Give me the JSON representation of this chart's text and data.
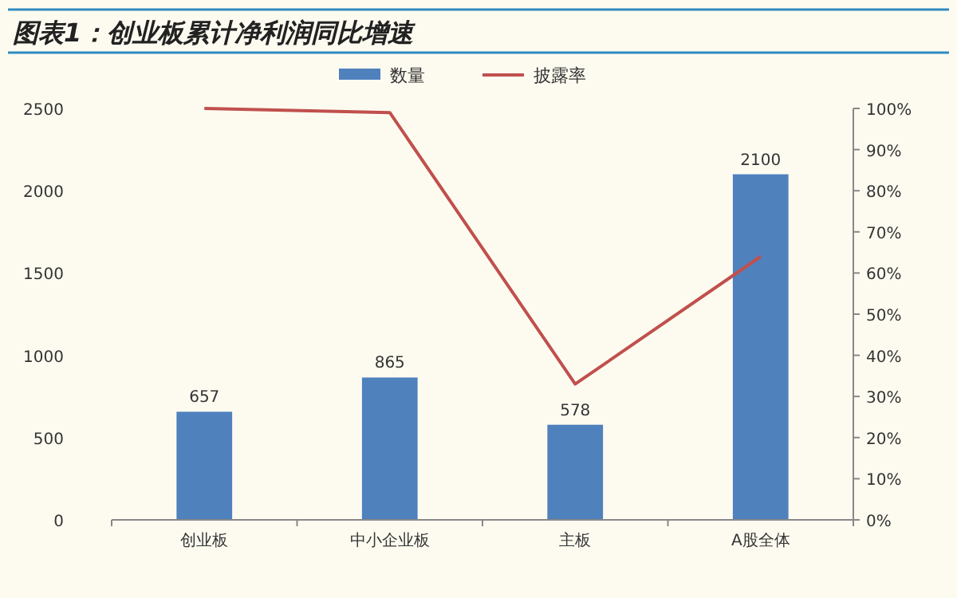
{
  "chart_data": {
    "type": "bar",
    "title": "图表1：创业板累计净利润同比增速",
    "categories": [
      "创业板",
      "中小企业板",
      "主板",
      "A股全体"
    ],
    "series": [
      {
        "name": "数量",
        "color": "#4f81bd",
        "values": [
          657,
          865,
          578,
          2100
        ],
        "value_labels": [
          "657",
          "865",
          "578",
          "2100"
        ]
      },
      {
        "name": "披露率",
        "type": "line",
        "axis": "y2",
        "color": "#c0504d",
        "values": [
          100,
          99,
          33,
          64
        ]
      }
    ],
    "ylim": [
      0,
      2500
    ],
    "yticks": [
      0,
      500,
      1000,
      1500,
      2000,
      2500
    ],
    "y2lim": [
      0,
      100
    ],
    "y2ticks": [
      {
        "value": 0,
        "label": "0%"
      },
      {
        "value": 10,
        "label": "10%"
      },
      {
        "value": 20,
        "label": "20%"
      },
      {
        "value": 30,
        "label": "30%"
      },
      {
        "value": 40,
        "label": "40%"
      },
      {
        "value": 50,
        "label": "50%"
      },
      {
        "value": 60,
        "label": "60%"
      },
      {
        "value": 70,
        "label": "70%"
      },
      {
        "value": 80,
        "label": "80%"
      },
      {
        "value": 90,
        "label": "90%"
      },
      {
        "value": 100,
        "label": "100%"
      }
    ],
    "legend": "top",
    "grid": false,
    "marker": "none",
    "line_style": "solid"
  }
}
